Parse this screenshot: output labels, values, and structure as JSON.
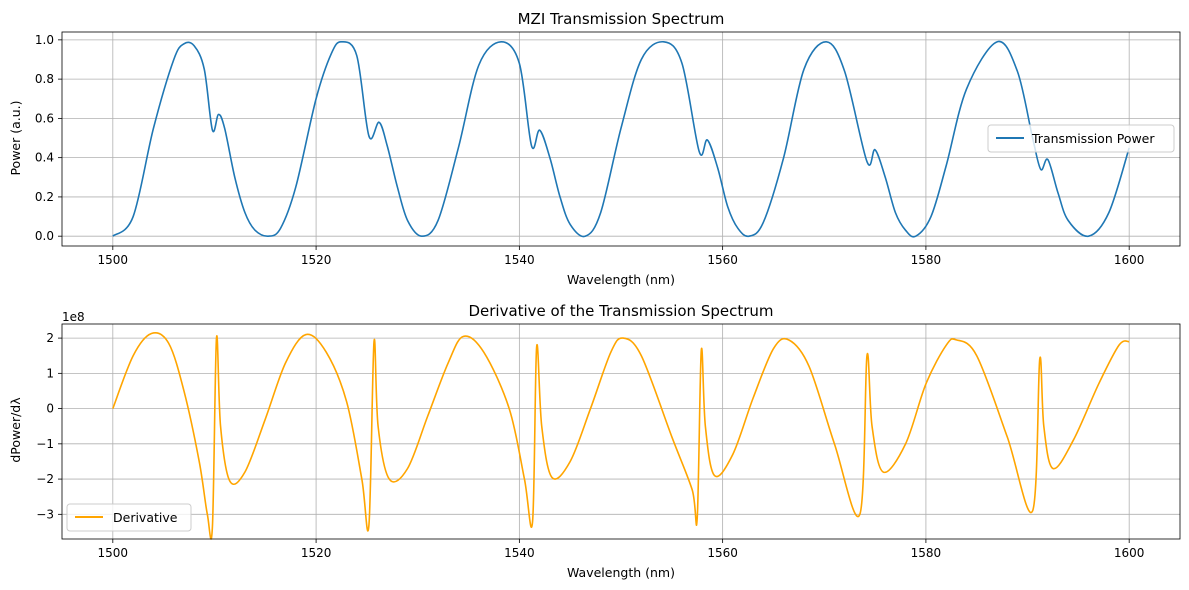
{
  "chart_data": [
    {
      "type": "line",
      "title": "MZI Transmission Spectrum",
      "xlabel": "Wavelength (nm)",
      "ylabel": "Power (a.u.)",
      "xlim": [
        1495,
        1605
      ],
      "ylim": [
        -0.05,
        1.04
      ],
      "xticks": [
        1500,
        1520,
        1540,
        1560,
        1580,
        1600
      ],
      "yticks": [
        0.0,
        0.2,
        0.4,
        0.6,
        0.8,
        1.0
      ],
      "xtick_labels": [
        "1500",
        "1520",
        "1540",
        "1560",
        "1580",
        "1600"
      ],
      "ytick_labels": [
        "0.0",
        "0.2",
        "0.4",
        "0.6",
        "0.8",
        "1.0"
      ],
      "grid": true,
      "legend": "center right",
      "series": [
        {
          "name": "Transmission Power",
          "color": "#1f77b4",
          "x": [
            1500,
            1502,
            1504,
            1506,
            1507,
            1508,
            1509,
            1509.8,
            1510.4,
            1511,
            1512,
            1513,
            1514,
            1515.3,
            1516.5,
            1518,
            1520,
            1521.5,
            1522.5,
            1524,
            1525.2,
            1526.2,
            1527,
            1528,
            1529,
            1530.4,
            1532,
            1534,
            1536,
            1538.2,
            1540,
            1541.2,
            1542,
            1543,
            1544,
            1545,
            1546.5,
            1548,
            1550,
            1552,
            1554.2,
            1556,
            1557.7,
            1558.5,
            1559.5,
            1560.5,
            1561.5,
            1562.6,
            1564,
            1566,
            1568,
            1570.2,
            1572,
            1574.2,
            1575,
            1576,
            1577,
            1578,
            1579,
            1580.5,
            1582,
            1584,
            1587,
            1589,
            1590.5,
            1591.3,
            1592,
            1593,
            1594,
            1596,
            1598,
            1600
          ],
          "y": [
            0.0,
            0.1,
            0.55,
            0.9,
            0.98,
            0.97,
            0.85,
            0.54,
            0.62,
            0.55,
            0.3,
            0.12,
            0.03,
            0.0,
            0.04,
            0.25,
            0.7,
            0.93,
            0.99,
            0.92,
            0.51,
            0.58,
            0.46,
            0.25,
            0.08,
            0.0,
            0.08,
            0.45,
            0.87,
            0.99,
            0.88,
            0.46,
            0.54,
            0.4,
            0.2,
            0.06,
            0.0,
            0.12,
            0.55,
            0.9,
            0.99,
            0.88,
            0.43,
            0.49,
            0.35,
            0.15,
            0.04,
            0.0,
            0.07,
            0.4,
            0.85,
            0.99,
            0.84,
            0.38,
            0.44,
            0.3,
            0.12,
            0.03,
            0.0,
            0.1,
            0.36,
            0.75,
            0.99,
            0.84,
            0.5,
            0.34,
            0.39,
            0.22,
            0.08,
            0.0,
            0.12,
            0.45
          ]
        }
      ]
    },
    {
      "type": "line",
      "title": "Derivative of the Transmission Spectrum",
      "xlabel": "Wavelength (nm)",
      "ylabel": "dPower/dλ",
      "scale_label": "1e8",
      "xlim": [
        1495,
        1605
      ],
      "ylim": [
        -3.7,
        2.4
      ],
      "xticks": [
        1500,
        1520,
        1540,
        1560,
        1580,
        1600
      ],
      "yticks": [
        -3,
        -2,
        -1,
        0,
        1,
        2
      ],
      "xtick_labels": [
        "1500",
        "1520",
        "1540",
        "1560",
        "1580",
        "1600"
      ],
      "ytick_labels": [
        "−3",
        "−2",
        "−1",
        "0",
        "1",
        "2"
      ],
      "grid": true,
      "legend": "lower left",
      "series": [
        {
          "name": "Derivative",
          "color": "#ffa500",
          "x": [
            1500,
            1502,
            1503.8,
            1505.5,
            1507,
            1508.5,
            1509.3,
            1509.8,
            1510.2,
            1510.6,
            1511.5,
            1513,
            1515,
            1517,
            1519,
            1521,
            1523,
            1524.5,
            1525.2,
            1525.7,
            1526.1,
            1527.2,
            1529,
            1531,
            1533,
            1534.5,
            1536.5,
            1539,
            1540.5,
            1541.3,
            1541.7,
            1542.2,
            1543.2,
            1545,
            1547,
            1549,
            1550.2,
            1552,
            1555,
            1557,
            1557.5,
            1557.9,
            1558.3,
            1559.2,
            1561,
            1563,
            1565,
            1566.5,
            1568.5,
            1571,
            1573.5,
            1574.2,
            1574.7,
            1575.8,
            1578,
            1580,
            1582,
            1583,
            1585,
            1588,
            1590.5,
            1591.2,
            1591.6,
            1592.5,
            1594.5,
            1597,
            1599,
            1600
          ],
          "y": [
            0.0,
            1.5,
            2.13,
            1.85,
            0.5,
            -1.5,
            -3.0,
            -3.35,
            2.0,
            -0.5,
            -2.05,
            -1.8,
            -0.3,
            1.3,
            2.1,
            1.6,
            0.2,
            -2.0,
            -3.3,
            1.9,
            -0.5,
            -2.0,
            -1.7,
            -0.2,
            1.3,
            2.05,
            1.6,
            0.0,
            -2.0,
            -3.2,
            1.75,
            -0.5,
            -1.95,
            -1.5,
            0.0,
            1.6,
            2.0,
            1.5,
            -0.8,
            -2.3,
            -3.1,
            1.65,
            -0.5,
            -1.9,
            -1.3,
            0.3,
            1.7,
            1.95,
            1.2,
            -1.0,
            -3.0,
            1.5,
            -0.5,
            -1.8,
            -1.0,
            0.7,
            1.8,
            1.95,
            1.5,
            -0.8,
            -2.9,
            1.4,
            -0.5,
            -1.7,
            -0.9,
            0.7,
            1.8,
            1.9
          ]
        }
      ]
    }
  ]
}
